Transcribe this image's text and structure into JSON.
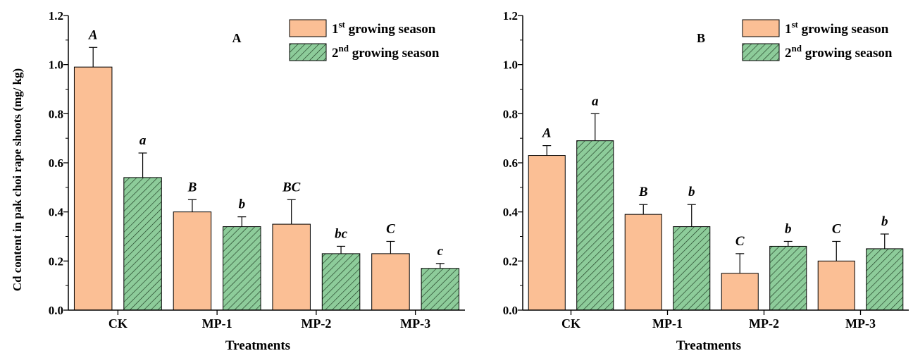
{
  "colors": {
    "season1_fill": "#fbbf95",
    "season2_fill": "#8dcc9a",
    "hatch": "#1e3a22",
    "stroke": "#000000"
  },
  "chart_data": [
    {
      "type": "bar",
      "panel_label": "A",
      "categories": [
        "CK",
        "MP-1",
        "MP-2",
        "MP-3"
      ],
      "series": [
        {
          "name": "1st growing season",
          "name_base": "1",
          "name_sup": "st",
          "name_rest": " growing season",
          "values": [
            0.99,
            0.4,
            0.35,
            0.23
          ],
          "errors": [
            0.08,
            0.05,
            0.1,
            0.05
          ],
          "letters": [
            "A",
            "B",
            "BC",
            "C"
          ]
        },
        {
          "name": "2nd growing season",
          "name_base": "2",
          "name_sup": "nd",
          "name_rest": " growing season",
          "values": [
            0.54,
            0.34,
            0.23,
            0.17
          ],
          "errors": [
            0.1,
            0.04,
            0.03,
            0.02
          ],
          "letters": [
            "a",
            "b",
            "bc",
            "c"
          ]
        }
      ],
      "xlabel": "Treatments",
      "ylabel": "Cd content in pak choi rape shoots (mg/ kg)",
      "ylim": [
        0,
        1.2
      ],
      "yticks": [
        "0.0",
        "0.2",
        "0.4",
        "0.6",
        "0.8",
        "1.0",
        "1.2"
      ],
      "legend": "top-right",
      "grid": false
    },
    {
      "type": "bar",
      "panel_label": "B",
      "categories": [
        "CK",
        "MP-1",
        "MP-2",
        "MP-3"
      ],
      "series": [
        {
          "name": "1st growing season",
          "name_base": "1",
          "name_sup": "st",
          "name_rest": " growing season",
          "values": [
            0.63,
            0.39,
            0.15,
            0.2
          ],
          "errors": [
            0.04,
            0.04,
            0.08,
            0.08
          ],
          "letters": [
            "A",
            "B",
            "C",
            "C"
          ]
        },
        {
          "name": "2nd growing season",
          "name_base": "2",
          "name_sup": "nd",
          "name_rest": " growing season",
          "values": [
            0.69,
            0.34,
            0.26,
            0.25
          ],
          "errors": [
            0.11,
            0.09,
            0.02,
            0.06
          ],
          "letters": [
            "a",
            "b",
            "b",
            "b"
          ]
        }
      ],
      "xlabel": "Treatments",
      "ylabel": "",
      "ylim": [
        0,
        1.2
      ],
      "yticks": [
        "0.0",
        "0.2",
        "0.4",
        "0.6",
        "0.8",
        "1.0",
        "1.2"
      ],
      "legend": "top-right",
      "grid": false
    }
  ]
}
